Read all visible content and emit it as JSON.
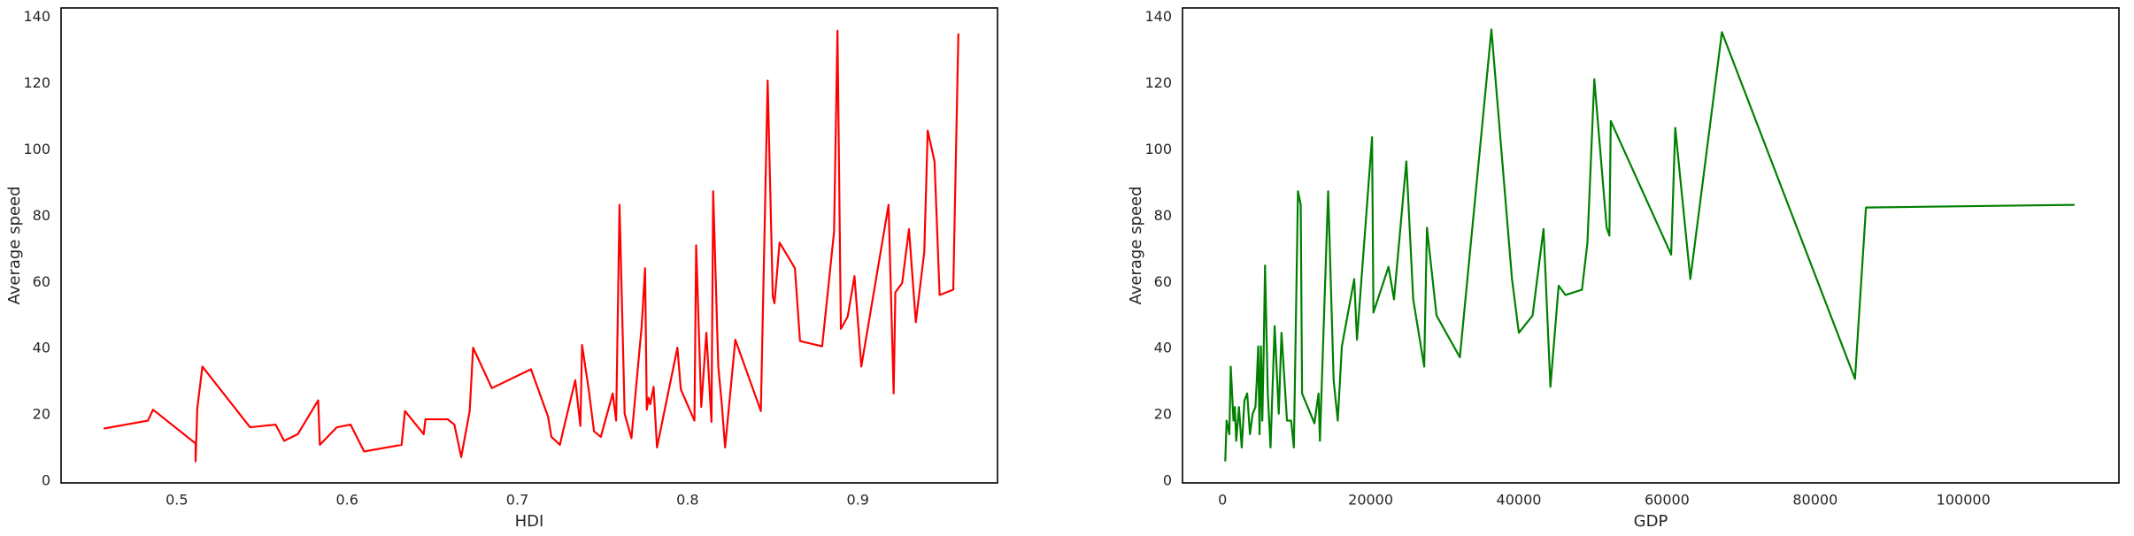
{
  "chart_data": [
    {
      "type": "line",
      "xlabel": "HDI",
      "ylabel": "Average speed",
      "color": "#ff0000",
      "xlim": [
        0.432,
        0.982
      ],
      "ylim": [
        -0.5,
        142.8
      ],
      "xticks": [
        0.5,
        0.6,
        0.7,
        0.8,
        0.9
      ],
      "yticks": [
        0,
        20,
        40,
        60,
        80,
        100,
        120,
        140
      ],
      "x": [
        0.457,
        0.483,
        0.486,
        0.511,
        0.511,
        0.512,
        0.515,
        0.543,
        0.558,
        0.563,
        0.571,
        0.583,
        0.584,
        0.594,
        0.602,
        0.61,
        0.632,
        0.634,
        0.645,
        0.646,
        0.659,
        0.663,
        0.667,
        0.672,
        0.674,
        0.685,
        0.708,
        0.718,
        0.72,
        0.725,
        0.727,
        0.734,
        0.737,
        0.738,
        0.742,
        0.745,
        0.749,
        0.756,
        0.758,
        0.76,
        0.763,
        0.767,
        0.773,
        0.775,
        0.776,
        0.777,
        0.778,
        0.78,
        0.782,
        0.794,
        0.796,
        0.804,
        0.805,
        0.808,
        0.811,
        0.814,
        0.815,
        0.818,
        0.82,
        0.822,
        0.828,
        0.843,
        0.847,
        0.85,
        0.851,
        0.854,
        0.863,
        0.866,
        0.879,
        0.886,
        0.888,
        0.89,
        0.894,
        0.898,
        0.902,
        0.918,
        0.921,
        0.922,
        0.926,
        0.93,
        0.934,
        0.939,
        0.941,
        0.945,
        0.948,
        0.956,
        0.959
      ],
      "values": [
        15.9,
        18.3,
        21.6,
        11.4,
        6,
        22,
        34.6,
        16.3,
        17.1,
        12.2,
        14.2,
        24.4,
        11,
        16.3,
        17.1,
        9,
        11,
        21.2,
        14.2,
        18.7,
        18.7,
        17.1,
        7.3,
        21.2,
        40.3,
        28.1,
        33.8,
        19.5,
        13.4,
        11,
        15.5,
        30.5,
        16.7,
        41.1,
        27.3,
        15.1,
        13.4,
        26.5,
        18.3,
        83.4,
        20.4,
        13,
        46.8,
        64.3,
        21.6,
        25.2,
        23.2,
        28.5,
        10.2,
        40.3,
        27.7,
        18.3,
        71.2,
        22.4,
        44.8,
        17.9,
        87.5,
        34.6,
        23.6,
        10.2,
        42.7,
        21.2,
        120.9,
        55.8,
        53.7,
        72,
        64.3,
        42.3,
        40.7,
        75.3,
        135.9,
        46,
        49.7,
        61.9,
        34.6,
        83.4,
        26.5,
        57,
        59.8,
        76.1,
        48,
        69.2,
        105.8,
        96.5,
        56.2,
        57.8,
        135.1
      ]
    },
    {
      "type": "line",
      "xlabel": "GDP",
      "ylabel": "Average speed",
      "color": "#008000",
      "xlim": [
        -5400,
        121000
      ],
      "ylim": [
        -0.5,
        142.8
      ],
      "xticks": [
        0,
        20000,
        40000,
        60000,
        80000,
        100000
      ],
      "yticks": [
        0,
        20,
        40,
        60,
        80,
        100,
        120,
        140
      ],
      "x": [
        370,
        556,
        926,
        1111,
        1481,
        1667,
        1852,
        2222,
        2593,
        2963,
        3333,
        3704,
        4074,
        4444,
        4630,
        4815,
        5000,
        5185,
        5370,
        5556,
        5741,
        6111,
        6481,
        7037,
        7593,
        7963,
        8704,
        9259,
        9630,
        10185,
        10556,
        10741,
        12407,
        12963,
        13148,
        14259,
        15000,
        15556,
        16111,
        17778,
        18148,
        20185,
        20370,
        22407,
        23148,
        24815,
        25741,
        27222,
        27593,
        28889,
        32037,
        36296,
        39074,
        40000,
        41852,
        43333,
        44259,
        45370,
        46296,
        48519,
        49259,
        50185,
        51852,
        52222,
        52407,
        60556,
        61111,
        63148,
        67407,
        85370,
        86852,
        115000
      ],
      "values": [
        6,
        18.3,
        14.2,
        34.6,
        18.3,
        22.4,
        12.2,
        22.4,
        10.2,
        24.4,
        26.5,
        14.2,
        20.4,
        22.4,
        30.5,
        40.7,
        14.2,
        40.7,
        18.3,
        38.7,
        65.1,
        26.5,
        10.2,
        46.8,
        20.4,
        44.8,
        18.3,
        18.3,
        10.2,
        87.5,
        83.4,
        26.5,
        17.5,
        26.5,
        12.2,
        87.5,
        30.5,
        18.3,
        40.7,
        61,
        42.7,
        103.8,
        50.9,
        64.7,
        54.9,
        96.5,
        54.9,
        34.6,
        76.5,
        50,
        37.4,
        136.3,
        61,
        44.8,
        50,
        76.1,
        28.5,
        59,
        56.2,
        57.8,
        72,
        121.3,
        76.5,
        74.1,
        108.7,
        68.4,
        106.6,
        61,
        135.5,
        30.9,
        82.6,
        83.4
      ]
    }
  ]
}
